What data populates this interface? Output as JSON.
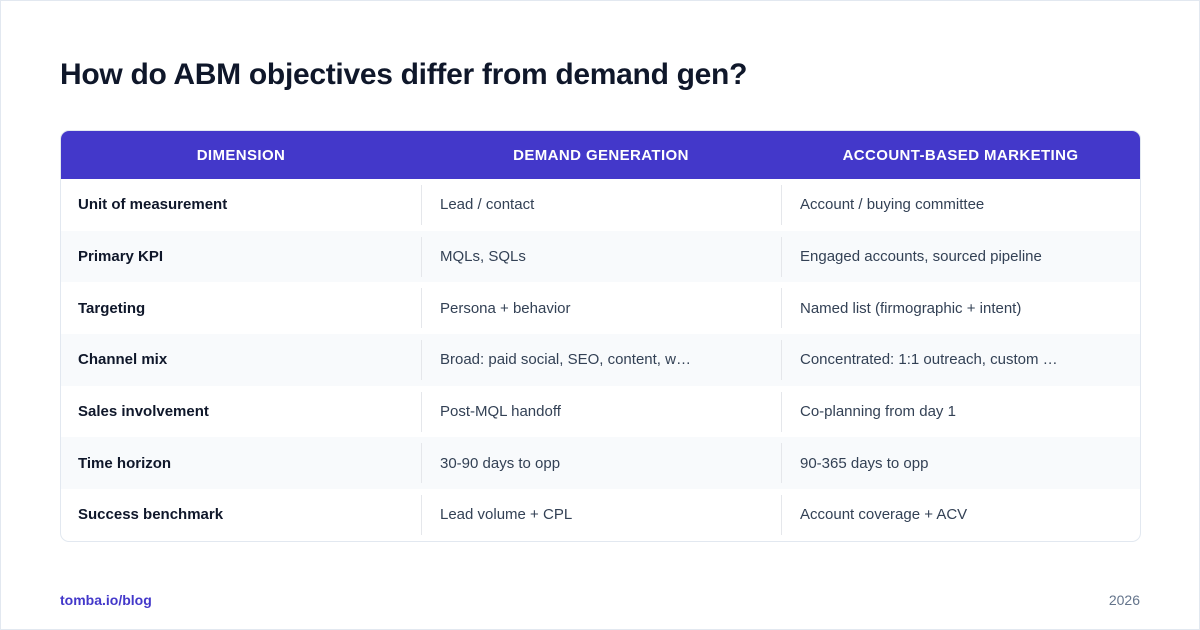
{
  "title": "How do ABM objectives differ from demand gen?",
  "table": {
    "headers": [
      "DIMENSION",
      "DEMAND GENERATION",
      "ACCOUNT-BASED MARKETING"
    ],
    "rows": [
      [
        "Unit of measurement",
        "Lead / contact",
        "Account / buying committee"
      ],
      [
        "Primary KPI",
        "MQLs, SQLs",
        "Engaged accounts, sourced pipeline"
      ],
      [
        "Targeting",
        "Persona + behavior",
        "Named list (firmographic + intent)"
      ],
      [
        "Channel mix",
        "Broad: paid social, SEO, content, w…",
        "Concentrated: 1:1 outreach, custom …"
      ],
      [
        "Sales involvement",
        "Post-MQL handoff",
        "Co-planning from day 1"
      ],
      [
        "Time horizon",
        "30-90 days to opp",
        "90-365 days to opp"
      ],
      [
        "Success benchmark",
        "Lead volume + CPL",
        "Account coverage + ACV"
      ]
    ]
  },
  "footer": {
    "link": "tomba.io/blog",
    "year": "2026"
  },
  "colors": {
    "header_bg": "#4338ca",
    "alt_row_bg": "#f8fafc",
    "accent": "#4338ca"
  }
}
